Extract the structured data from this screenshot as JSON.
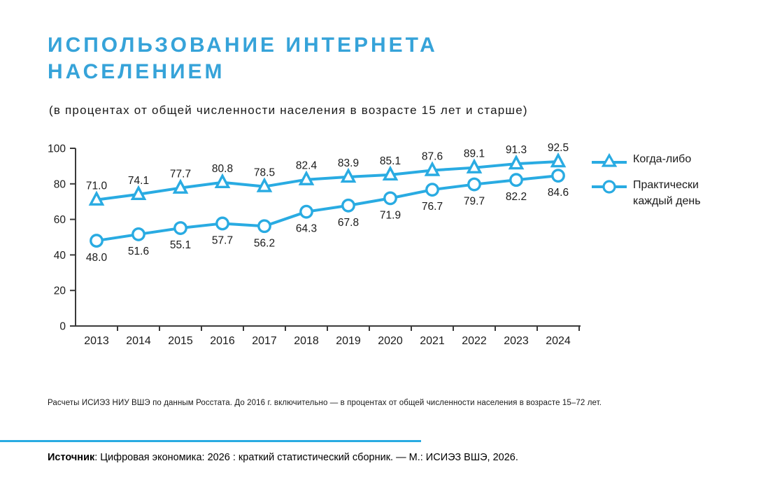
{
  "header": {
    "title": "ИСПОЛЬЗОВАНИЕ ИНТЕРНЕТА НАСЕЛЕНИЕМ",
    "subtitle": "(в процентах от общей численности населения в возрасте 15 лет и старше)"
  },
  "chart_data": {
    "type": "line",
    "categories": [
      "2013",
      "2014",
      "2015",
      "2016",
      "2017",
      "2018",
      "2019",
      "2020",
      "2021",
      "2022",
      "2023",
      "2024"
    ],
    "series": [
      {
        "name": "Когда-либо",
        "marker": "triangle",
        "values": [
          71.0,
          74.1,
          77.7,
          80.8,
          78.5,
          82.4,
          83.9,
          85.1,
          87.6,
          89.1,
          91.3,
          92.5
        ]
      },
      {
        "name": "Практически каждый день",
        "marker": "circle",
        "values": [
          48.0,
          51.6,
          55.1,
          57.7,
          56.2,
          64.3,
          67.8,
          71.9,
          76.7,
          79.7,
          82.2,
          84.6
        ]
      }
    ],
    "ylim": [
      0,
      100
    ],
    "yticks": [
      0,
      20,
      40,
      60,
      80,
      100
    ],
    "grid": "off",
    "legend_position": "right",
    "line_color": "#29abe2",
    "axis_color": "#3a3a3a",
    "data_label_decimals": 1
  },
  "footer": {
    "note": "Расчеты ИСИЭЗ НИУ ВШЭ по данным Росстата. До 2016 г. включительно — в процентах от общей численности населения в возрасте 15–72 лет.",
    "source_label": "Источник",
    "source_text": ": Цифровая экономика: 2026 : краткий статистический сборник. — М.: ИСИЭЗ ВШЭ, 2026."
  }
}
